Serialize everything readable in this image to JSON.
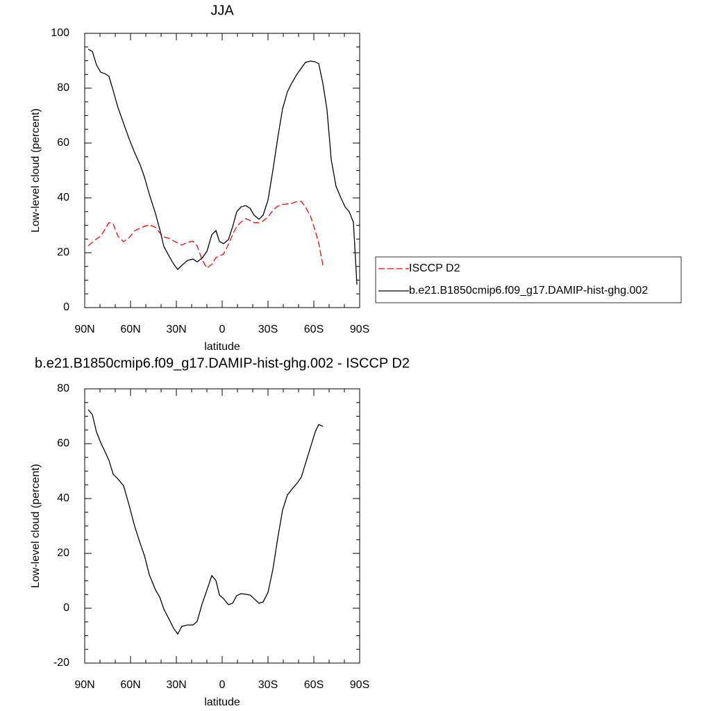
{
  "chart_data": [
    {
      "type": "line",
      "title": "JJA",
      "xlabel": "latitude",
      "ylabel": "Low-level cloud (percent)",
      "x": [
        87.7,
        85.0,
        82.3,
        79.5,
        76.8,
        74.1,
        71.4,
        68.2,
        64.5,
        60.9,
        57.3,
        53.6,
        50.9,
        47.7,
        43.6,
        40.9,
        38.2,
        34.5,
        31.8,
        29.1,
        26.4,
        22.7,
        19.1,
        16.4,
        13.2,
        10.0,
        6.8,
        4.1,
        1.8,
        -0.9,
        -4.1,
        -6.8,
        -9.5,
        -12.3,
        -15.5,
        -18.2,
        -20.9,
        -24.1,
        -26.8,
        -30.0,
        -33.2,
        -36.4,
        -39.5,
        -42.7,
        -45.5,
        -48.6,
        -51.8,
        -54.5,
        -57.7,
        -60.9,
        -63.2,
        -65.9,
        -68.6,
        -71.4,
        -74.5,
        -77.7,
        -80.5,
        -83.2,
        -85.9,
        -88.2
      ],
      "series": [
        {
          "name": "ISCCP D2",
          "color": "#ff0000",
          "dash": true,
          "values": [
            22.5,
            23.8,
            25,
            26,
            28.5,
            31,
            30.5,
            26,
            24,
            25.5,
            28,
            29,
            29.6,
            30.2,
            29.2,
            27.3,
            25.8,
            25.2,
            24.3,
            23.5,
            22.8,
            23.8,
            24.2,
            22.5,
            17.5,
            14.4,
            15.8,
            18.2,
            18.8,
            19.5,
            23.0,
            26.6,
            29.5,
            31.2,
            32.4,
            31.8,
            31,
            30.9,
            31.6,
            33,
            35.5,
            37,
            37.6,
            37.8,
            38,
            38.6,
            38.7,
            36.7,
            33.5,
            28,
            23.5,
            15.5,
            null,
            null,
            null,
            null,
            null,
            null,
            null,
            null
          ]
        },
        {
          "name": "b.e21.B1850cmip6.f09_g17.DAMIP-hist-ghg.002",
          "color": "#000000",
          "dash": false,
          "values": [
            94.2,
            93.4,
            88.5,
            85.8,
            85.3,
            84.3,
            79.2,
            72.9,
            67.1,
            61.5,
            56.5,
            51.9,
            47.6,
            41.3,
            34.2,
            28.6,
            22.3,
            18.5,
            15.9,
            13.9,
            15.4,
            17.2,
            17.7,
            16.7,
            18.0,
            20.5,
            26.6,
            28.1,
            24.1,
            23.3,
            24.8,
            29.4,
            34.9,
            36.7,
            37.2,
            36.2,
            33.7,
            32.2,
            33.7,
            39.2,
            50.1,
            62.0,
            72.4,
            78.7,
            81.8,
            84.8,
            87.3,
            89.4,
            89.9,
            89.6,
            88.9,
            81.8,
            72.2,
            53.9,
            44.3,
            40.0,
            36.7,
            34.9,
            31.1,
            8.4
          ]
        }
      ],
      "xlim": [
        90,
        -90
      ],
      "xticks": [
        {
          "value": 90,
          "label": "90N"
        },
        {
          "value": 60,
          "label": "60N"
        },
        {
          "value": 30,
          "label": "30N"
        },
        0,
        {
          "value": -30,
          "label": "30S"
        },
        {
          "value": -60,
          "label": "60S"
        },
        {
          "value": -90,
          "label": "90S"
        }
      ],
      "ylim": [
        0,
        100
      ],
      "yticks": [
        0,
        20,
        40,
        60,
        80,
        100
      ],
      "grid": false,
      "legend": "right"
    },
    {
      "type": "line",
      "title": "b.e21.B1850cmip6.f09_g17.DAMIP-hist-ghg.002 - ISCCP D2",
      "xlabel": "latitude",
      "ylabel": "Low-level cloud (percent)",
      "x": [
        87.7,
        85.0,
        82.3,
        79.5,
        76.8,
        74.1,
        71.4,
        68.2,
        64.5,
        60.9,
        57.3,
        53.6,
        50.9,
        47.7,
        43.6,
        40.9,
        38.2,
        34.5,
        31.8,
        29.1,
        26.4,
        22.7,
        19.1,
        16.4,
        13.2,
        10.0,
        6.8,
        4.1,
        1.8,
        -0.9,
        -4.1,
        -6.8,
        -9.5,
        -12.3,
        -15.5,
        -18.2,
        -20.9,
        -24.1,
        -26.8,
        -30.0,
        -33.2,
        -36.4,
        -39.5,
        -42.7,
        -45.5,
        -48.6,
        -51.8,
        -54.5,
        -57.7,
        -60.9,
        -63.2,
        -65.9,
        -68.6,
        -71.4,
        -74.5,
        -77.7,
        -80.5,
        -83.2,
        -85.9,
        -88.2
      ],
      "color": "#000000",
      "values": [
        72.4,
        70.6,
        64.3,
        60.3,
        57.2,
        53.9,
        48.9,
        47.1,
        44.6,
        37.5,
        29.9,
        23.5,
        19.2,
        12.2,
        6.6,
        4.1,
        -0.3,
        -4.3,
        -7.3,
        -9.4,
        -6.6,
        -6.1,
        -6.1,
        -4.8,
        1.5,
        6.6,
        11.9,
        10.1,
        4.8,
        3.5,
        1.3,
        1.8,
        4.6,
        5.3,
        5.1,
        4.8,
        3.5,
        1.8,
        2.3,
        5.8,
        14.2,
        25.6,
        35.7,
        41.3,
        43.3,
        45.3,
        47.8,
        52.7,
        58.5,
        64.3,
        67,
        66.3,
        null,
        null,
        null,
        null,
        null,
        null,
        null,
        null
      ],
      "xlim": [
        90,
        -90
      ],
      "xticks": [
        {
          "value": 90,
          "label": "90N"
        },
        {
          "value": 60,
          "label": "60N"
        },
        {
          "value": 30,
          "label": "30N"
        },
        0,
        {
          "value": -30,
          "label": "30S"
        },
        {
          "value": -60,
          "label": "60S"
        },
        {
          "value": -90,
          "label": "90S"
        }
      ],
      "ylim": [
        -20,
        80
      ],
      "yticks": [
        -20,
        0,
        20,
        40,
        60,
        80
      ],
      "grid": false
    }
  ]
}
